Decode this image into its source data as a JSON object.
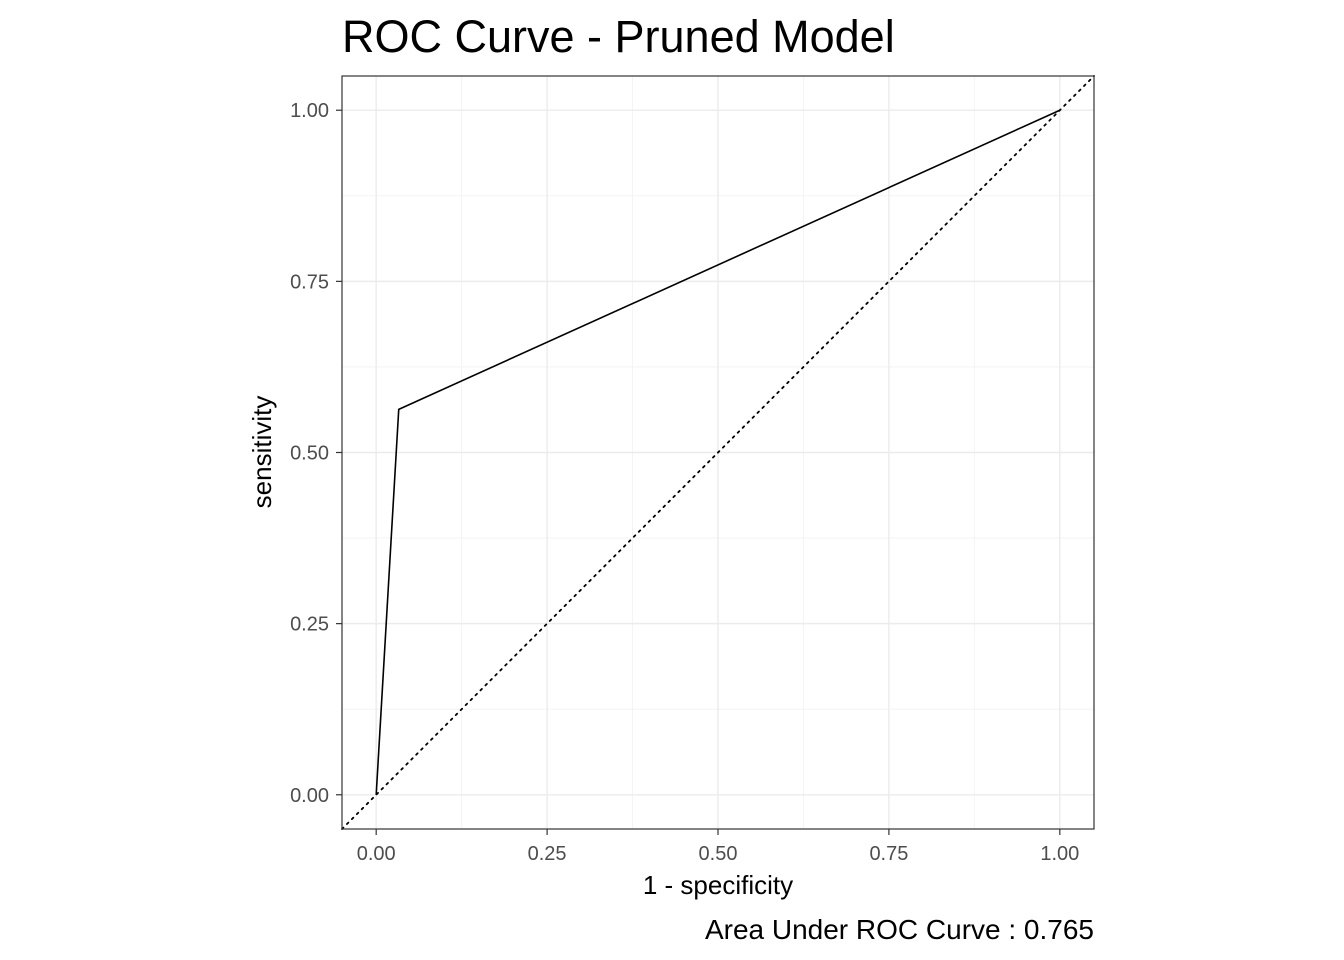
{
  "chart_data": {
    "type": "line",
    "title": "ROC Curve - Pruned Model",
    "xlabel": "1 - specificity",
    "ylabel": "sensitivity",
    "caption": "Area Under ROC Curve : 0.765",
    "xlim": [
      -0.05,
      1.05
    ],
    "ylim": [
      -0.05,
      1.05
    ],
    "x_ticks": [
      "0.00",
      "0.25",
      "0.50",
      "0.75",
      "1.00"
    ],
    "y_ticks": [
      "0.00",
      "0.25",
      "0.50",
      "0.75",
      "1.00"
    ],
    "grid": true,
    "series": [
      {
        "x": [
          0.0,
          0.033,
          1.0
        ],
        "y": [
          0.0,
          0.563,
          1.0
        ],
        "line": "solid",
        "color": "#000000"
      }
    ],
    "reference_line": {
      "x": [
        -0.05,
        1.05
      ],
      "y": [
        -0.05,
        1.05
      ],
      "line": "dotted",
      "color": "#000000"
    },
    "auc": 0.765
  }
}
